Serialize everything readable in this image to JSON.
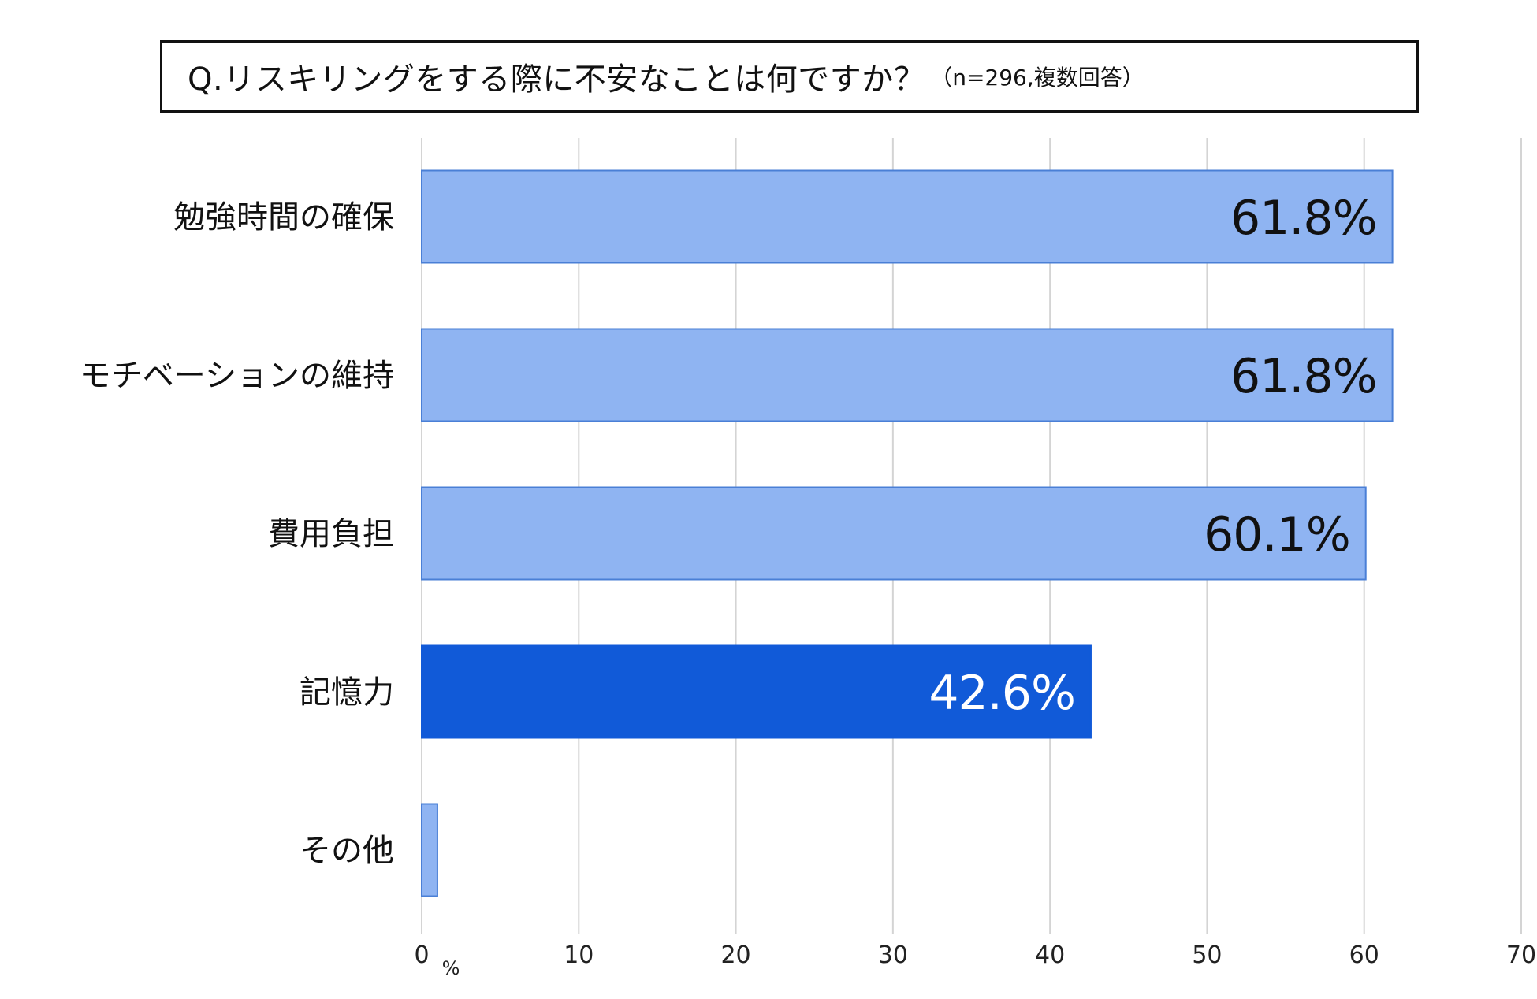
{
  "chart_data": {
    "type": "bar",
    "orientation": "horizontal",
    "title": "Q.リスキリングをする際に不安なことは何ですか？",
    "subtitle": "（n=296,複数回答）",
    "categories": [
      "勉強時間の確保",
      "モチベーションの維持",
      "費用負担",
      "記憶力",
      "その他"
    ],
    "values": [
      61.8,
      61.8,
      60.1,
      42.6,
      1.0
    ],
    "data_labels": [
      "61.8%",
      "61.8%",
      "60.1%",
      "42.6%",
      ""
    ],
    "highlight_index": 3,
    "xlim": [
      0,
      70
    ],
    "xticks": [
      0,
      10,
      20,
      30,
      40,
      50,
      60,
      70
    ],
    "x_unit_label": "%",
    "grid": true,
    "colors": {
      "bar": "#8fb4f2",
      "bar_border": "#4a7fd6",
      "highlight_bar": "#115ad8",
      "grid": "#d4d4d4",
      "label_dark": "#111111",
      "label_light": "#ffffff"
    }
  }
}
